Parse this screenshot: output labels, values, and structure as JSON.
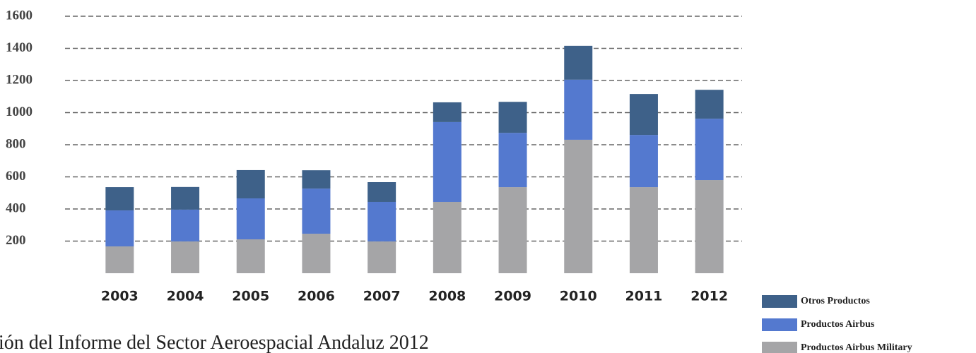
{
  "chart_data": {
    "type": "stacked_bar",
    "categories": [
      "2003",
      "2004",
      "2005",
      "2006",
      "2007",
      "2008",
      "2009",
      "2010",
      "2011",
      "2012"
    ],
    "series": [
      {
        "name": "Productos Airbus Military",
        "color": "#a5a5a7",
        "values": [
          167,
          198,
          211,
          246,
          198,
          444,
          536,
          831,
          536,
          580
        ]
      },
      {
        "name": "Productos Airbus",
        "color": "#5479cf",
        "values": [
          224,
          198,
          255,
          281,
          246,
          497,
          338,
          374,
          325,
          382
        ]
      },
      {
        "name": "Otros Productos",
        "color": "#3e6189",
        "values": [
          145,
          141,
          176,
          114,
          123,
          123,
          193,
          211,
          255,
          180
        ]
      }
    ],
    "ylim": [
      0,
      1600
    ],
    "yticks": [
      200,
      400,
      600,
      800,
      1000,
      1200,
      1400,
      1600
    ],
    "grid": true,
    "legend": "bottom-right",
    "caption": "ión del Informe del Sector Aeroespacial Andaluz 2012"
  }
}
